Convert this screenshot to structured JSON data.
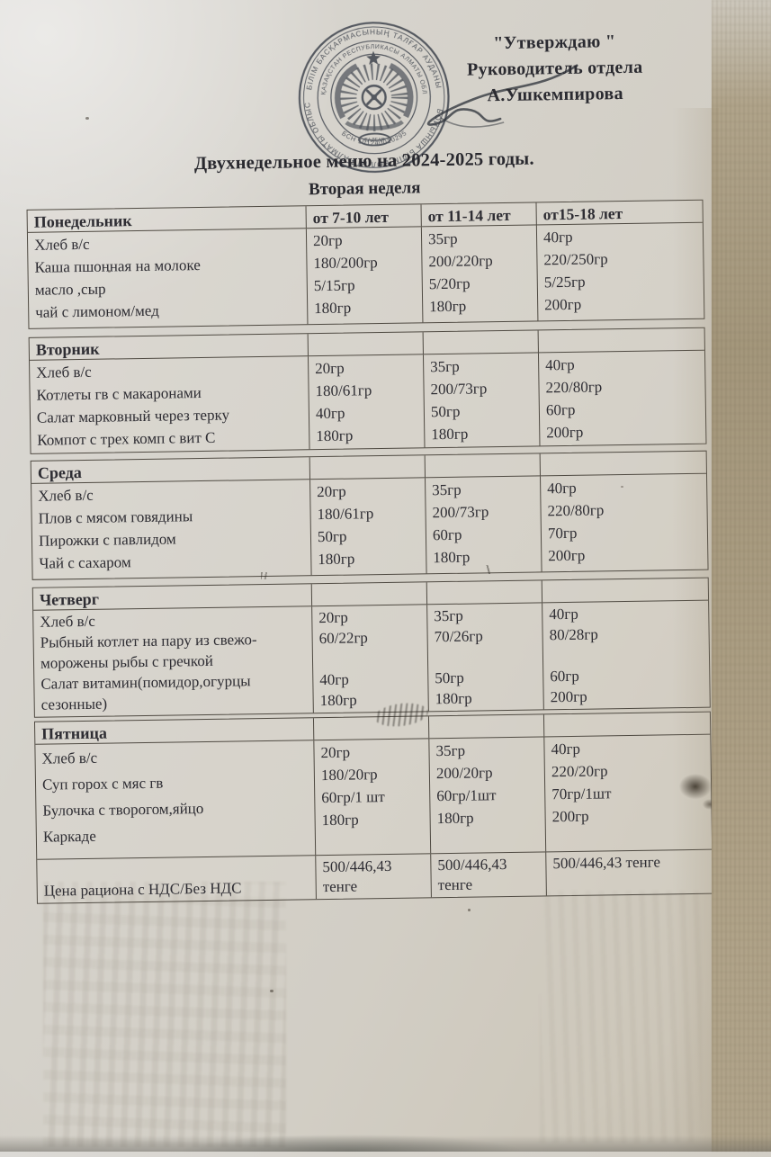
{
  "approval": {
    "line1": "\"Утверждаю \"",
    "line2": "Руководитель отдела",
    "line3": "А.Ушкемпирова"
  },
  "title": "Двухнедельное меню  на 2024-2025 годы.",
  "subtitle": "Вторая неделя",
  "stamp": {
    "outer_ring_text": "БІЛІМ БАСҚАРМАСЫНЫҢ ТАЛҒАР АУДАНЫ БОЙЫНША БІЛІМ БӨЛІМІ",
    "inner_ring_text": "ҚАЗАҚСТАН РЕСПУБЛИКАСЫ АЛМАТЫ ОБЛЫСЫ",
    "bsn_text": "БСН 101240010295",
    "banner_text": "ТАЛҒАР",
    "ink_color": "#434851"
  },
  "table": {
    "age_headers": [
      "от 7-10 лет",
      "от 11-14 лет",
      "от15-18 лет"
    ],
    "days": [
      {
        "day": "Понедельник",
        "dishes": [
          "Хлеб в/с",
          "Каша пшонная на молоке",
          "масло ,сыр",
          "чай с лимоном/мед"
        ],
        "cols": [
          [
            "20гр",
            "180/200гр",
            "5/15гр",
            "180гр"
          ],
          [
            "35гр",
            "200/220гр",
            "5/20гр",
            "180гр"
          ],
          [
            "40гр",
            "220/250гр",
            "5/25гр",
            "200гр"
          ]
        ]
      },
      {
        "day": "Вторник",
        "dishes": [
          "Хлеб в/с",
          "Котлеты гв с макаронами",
          "Салат марковный через терку",
          "Компот с трех комп с вит С"
        ],
        "cols": [
          [
            "20гр",
            "180/61гр",
            "40гр",
            "180гр"
          ],
          [
            "35гр",
            "200/73гр",
            "50гр",
            "180гр"
          ],
          [
            "40гр",
            "220/80гр",
            "60гр",
            "200гр"
          ]
        ]
      },
      {
        "day": "Среда",
        "dishes": [
          "Хлеб в/с",
          "Плов с мясом говядины",
          "Пирожки с павлидом",
          "Чай с сахаром"
        ],
        "cols": [
          [
            "20гр",
            "180/61гр",
            "50гр",
            "180гр"
          ],
          [
            "35гр",
            "200/73гр",
            "60гр",
            "180гр"
          ],
          [
            "40гр",
            "220/80гр",
            "70гр",
            "200гр"
          ]
        ]
      },
      {
        "day": "Четверг",
        "dishes": [
          "Хлеб в/с",
          "Рыбный котлет на пару из свежо-",
          "морожены рыбы с гречкой",
          "Салат витамин(помидор,огурцы",
          "сезонные)"
        ],
        "cols": [
          [
            "20гр",
            "60/22гр",
            "",
            "40гр",
            "180гр"
          ],
          [
            "35гр",
            "70/26гр",
            "",
            "50гр",
            "180гр"
          ],
          [
            "40гр",
            "80/28гр",
            "",
            "60гр",
            "200гр"
          ]
        ]
      },
      {
        "day": "Пятница",
        "dishes": [
          "Хлеб в/с",
          "Суп горох с мяс гв",
          "Булочка с творогом,яйцо",
          "Каркаде"
        ],
        "cols": [
          [
            "20гр",
            "180/20гр",
            "60гр/1 шт",
            "180гр"
          ],
          [
            "35гр",
            "200/20гр",
            "60гр/1шт",
            "180гр"
          ],
          [
            "40гр",
            "220/20гр",
            "70гр/1шт",
            "200гр"
          ]
        ]
      }
    ],
    "price_row": {
      "label": "Цена рациона с НДС/Без НДС",
      "values": [
        "500/446,43 тенге",
        "500/446,43 тенге",
        "500/446,43 тенге"
      ]
    }
  }
}
